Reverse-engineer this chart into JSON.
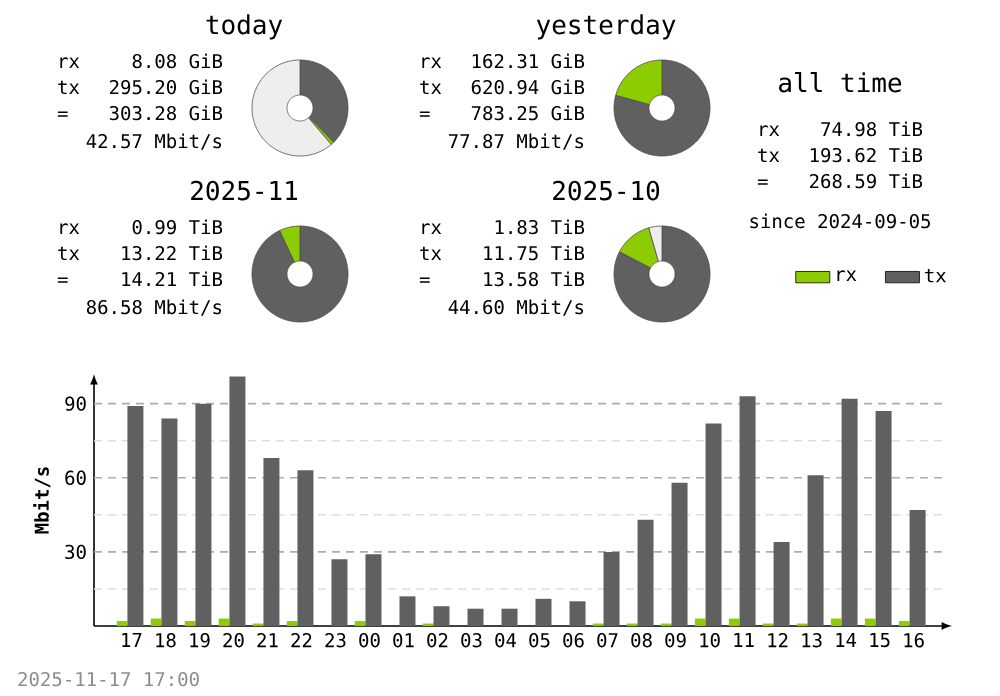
{
  "chart_data": [
    {
      "type": "donut",
      "title": "today",
      "categories": [
        null,
        null,
        null
      ],
      "values": [
        37.69,
        1.03,
        61.28
      ],
      "colors": [
        "#606060",
        "#8ccc00",
        "#eeeeee"
      ],
      "annotations": [
        "rx",
        "8.08 GiB",
        "tx",
        "295.20 GiB",
        "=",
        "303.28 GiB",
        "42.57 Mbit/s"
      ]
    },
    {
      "type": "donut",
      "title": "yesterday",
      "categories": [
        null,
        null
      ],
      "values": [
        79.28,
        20.72
      ],
      "colors": [
        "#606060",
        "#8ccc00"
      ],
      "annotations": [
        "rx",
        "162.31 GiB",
        "tx",
        "620.94 GiB",
        "=",
        "783.25 GiB",
        "77.87 Mbit/s"
      ]
    },
    {
      "type": "other",
      "title": "all time",
      "annotations": [
        "rx",
        "74.98 TiB",
        "tx",
        "193.62 TiB",
        "=",
        "268.59 TiB",
        "since 2024-09-05"
      ]
    },
    {
      "type": "donut",
      "title": "2025-11",
      "categories": [
        null,
        null
      ],
      "values": [
        93.03,
        6.97
      ],
      "colors": [
        "#606060",
        "#8ccc00"
      ],
      "annotations": [
        "rx",
        "0.99 TiB",
        "tx",
        "13.22 TiB",
        "=",
        "14.21 TiB",
        "86.58 Mbit/s"
      ]
    },
    {
      "type": "donut",
      "title": "2025-10",
      "categories": [
        null,
        null,
        null
      ],
      "values": [
        82.69,
        12.88,
        4.43
      ],
      "colors": [
        "#606060",
        "#8ccc00",
        "#eeeeee"
      ],
      "annotations": [
        "rx",
        "1.83 TiB",
        "tx",
        "11.75 TiB",
        "=",
        "13.58 TiB",
        "44.60 Mbit/s"
      ]
    },
    {
      "type": "bar",
      "ylabel": "Mbit/s",
      "categories": [
        "17",
        "18",
        "19",
        "20",
        "21",
        "22",
        "23",
        "00",
        "01",
        "02",
        "03",
        "04",
        "05",
        "06",
        "07",
        "08",
        "09",
        "10",
        "11",
        "12",
        "13",
        "14",
        "15",
        "16"
      ],
      "series": [
        {
          "name": "rx",
          "color": "#8ccc00",
          "values": [
            2,
            3,
            2,
            3,
            1,
            2,
            0,
            2,
            0,
            1,
            0,
            0,
            0,
            0,
            1,
            1,
            1,
            3,
            3,
            1,
            1,
            3,
            3,
            2
          ]
        },
        {
          "name": "tx",
          "color": "#606060",
          "values": [
            89,
            84,
            90,
            101,
            68,
            63,
            27,
            29,
            12,
            8,
            7,
            7,
            11,
            10,
            30,
            43,
            58,
            82,
            93,
            34,
            61,
            92,
            87,
            47
          ]
        }
      ],
      "ylim": [
        0,
        102
      ],
      "yticks": [
        {
          "value": 15,
          "label": null
        },
        30,
        {
          "value": 45,
          "label": null
        },
        60,
        {
          "value": 75,
          "label": null
        },
        90
      ],
      "grid": "y",
      "legend": "top right",
      "annotations": [
        "2025-11-17 17:00"
      ]
    }
  ]
}
